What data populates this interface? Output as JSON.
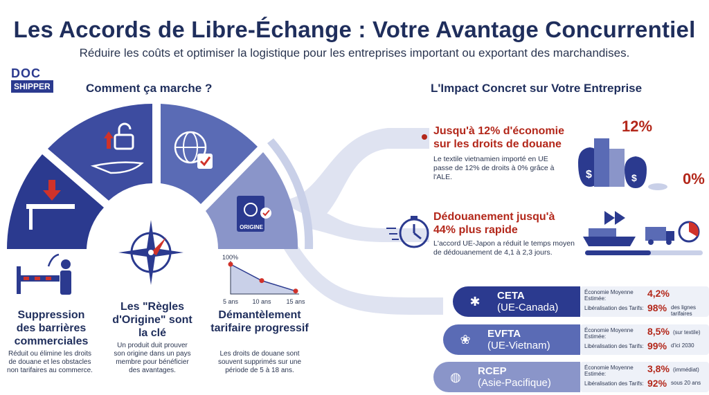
{
  "header": {
    "title": "Les Accords de Libre-Échange : Votre Avantage Concurrentiel",
    "subtitle": "Réduire les coûts et optimiser la logistique pour les entreprises important ou exportant des marchandises."
  },
  "logo": {
    "top": "DOC",
    "bottom": "SHIPPER"
  },
  "how": {
    "heading": "Comment ça marche ?",
    "fan_badge": "ORIGINE",
    "steps": [
      {
        "title": "Suppression des barrières commerciales",
        "text": "Réduit ou élimine les droits de douane et les obstacles non tarifaires au commerce."
      },
      {
        "title": "Les \"Règles d'Origine\" sont la clé",
        "text": "Un produit duit prouver son origine dans un pays membre pour bénéficier des avantages."
      },
      {
        "title": "Démantèlement tarifaire progressif",
        "text": "Les droits de douane sont souvent supprimés sur une période de 5 à 18 ans."
      }
    ],
    "mini_chart": {
      "type": "line",
      "x": [
        "5 ans",
        "10 ans",
        "15 ans"
      ],
      "values": [
        100,
        45,
        10
      ],
      "top_label": "100%"
    }
  },
  "impact": {
    "heading": "L'Impact Concret sur Votre Entreprise",
    "items": [
      {
        "title": "Jusqu'à 12% d'économie sur les droits de douane",
        "text": "Le textile vietnamien importé en UE passe de 12% de droits à 0% grâce à l'ALE."
      },
      {
        "title": "Dédouanement jusqu'à 44% plus rapide",
        "text": "L'accord UE-Japon a réduit le temps moyen de dédouanement de 4,1 à 2,3 jours."
      }
    ],
    "value_from": "12%",
    "value_to": "0%"
  },
  "agreements": {
    "savings_label": "Économie Moyenne Estimée:",
    "liberalisation_label": "Libéralisation des Tarifs:",
    "items": [
      {
        "name": "CETA",
        "region": "(UE-Canada)",
        "saving": "4,2%",
        "saving_note": "",
        "lib": "98%",
        "lib_note": "des lignes tarifaires",
        "color": "#2b3a8f",
        "icon": "maple-leaf-icon"
      },
      {
        "name": "EVFTA",
        "region": "(UE-Vietnam)",
        "saving": "8,5%",
        "saving_note": "(sur textile)",
        "lib": "99%",
        "lib_note": "d'ici 2030",
        "color": "#5a6bb5",
        "icon": "lotus-icon"
      },
      {
        "name": "RCEP",
        "region": "(Asie-Pacifique)",
        "saving": "3,8%",
        "saving_note": "(immédiat)",
        "lib": "92%",
        "lib_note": "sous 20 ans",
        "color": "#8a95c9",
        "icon": "globe-asia-icon"
      }
    ]
  },
  "colors": {
    "navy": "#1f2e5c",
    "accent_red": "#b3271a",
    "blue": "#2b3a8f",
    "light_blue": "#c9d0e8"
  }
}
